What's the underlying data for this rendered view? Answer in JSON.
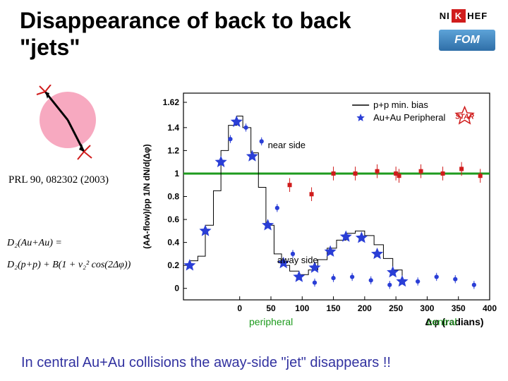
{
  "title": "Disappearance of back to back \"jets\"",
  "logos": {
    "nikhef_ni": "NI",
    "nikhef_k": "K",
    "nikhef_hef": "HEF",
    "fom": "FOM"
  },
  "citation": "PRL 90, 082302 (2003)",
  "d2_labels": {
    "top": "D₂(Au+Au) =",
    "bottom": "D₂(p+p) + B(1 + v₂² cos(2Δφ))"
  },
  "annotations": {
    "near_side": "near side",
    "away_side": "away side",
    "peripheral": "peripheral",
    "central": "central",
    "star": "STAR"
  },
  "legend": {
    "pp": "p+p min. bias",
    "auau_peripheral": "Au+Au Peripheral"
  },
  "chart": {
    "type": "scatter-step",
    "x_axis": {
      "lim": [
        -90,
        400
      ],
      "ticks": [
        0,
        50,
        100,
        150,
        200,
        250,
        300,
        350,
        400
      ]
    },
    "y_axis": {
      "label": "(AA-flow)/pp   1/N dN/d(Δφ)",
      "lim": [
        -0.1,
        1.7
      ],
      "ticks": [
        0,
        0.2,
        0.4,
        0.6,
        0.8,
        1,
        1.2,
        1.4,
        1.62
      ],
      "title_x": "Δφ (radians)"
    },
    "background_color": "#ffffff",
    "frame_color": "#000000",
    "green_baseline_y": 1.0,
    "green_color": "#1e9b1e",
    "series": {
      "pp_hist": {
        "color": "#000000",
        "linewidth": 1,
        "points": [
          [
            -80,
            0.24
          ],
          [
            -67,
            0.28
          ],
          [
            -55,
            0.55
          ],
          [
            -42,
            0.85
          ],
          [
            -30,
            1.2
          ],
          [
            -18,
            1.42
          ],
          [
            -5,
            1.5
          ],
          [
            5,
            1.4
          ],
          [
            18,
            1.18
          ],
          [
            30,
            0.88
          ],
          [
            42,
            0.55
          ],
          [
            55,
            0.3
          ],
          [
            67,
            0.2
          ],
          [
            80,
            0.15
          ],
          [
            95,
            0.12
          ],
          [
            110,
            0.16
          ],
          [
            125,
            0.25
          ],
          [
            140,
            0.35
          ],
          [
            155,
            0.42
          ],
          [
            170,
            0.48
          ],
          [
            185,
            0.5
          ],
          [
            200,
            0.46
          ],
          [
            215,
            0.38
          ],
          [
            230,
            0.26
          ],
          [
            245,
            0.16
          ],
          [
            260,
            0.1
          ]
        ]
      },
      "auau_peripheral": {
        "marker": "star",
        "color": "#2a3ed6",
        "size": 10,
        "points": [
          [
            -80,
            0.2
          ],
          [
            -55,
            0.5
          ],
          [
            -30,
            1.1
          ],
          [
            -5,
            1.45
          ],
          [
            20,
            1.15
          ],
          [
            45,
            0.55
          ],
          [
            70,
            0.22
          ],
          [
            95,
            0.1
          ],
          [
            120,
            0.18
          ],
          [
            145,
            0.32
          ],
          [
            170,
            0.45
          ],
          [
            195,
            0.44
          ],
          [
            220,
            0.3
          ],
          [
            245,
            0.14
          ],
          [
            260,
            0.06
          ]
        ]
      },
      "auau_central_blue": {
        "marker": "circle",
        "color": "#2a3ed6",
        "size": 5,
        "err": 0.035,
        "points": [
          [
            -15,
            1.3
          ],
          [
            10,
            1.4
          ],
          [
            35,
            1.28
          ],
          [
            60,
            0.7
          ],
          [
            85,
            0.3
          ],
          [
            120,
            0.05
          ],
          [
            150,
            0.09
          ],
          [
            180,
            0.1
          ],
          [
            210,
            0.07
          ],
          [
            240,
            0.03
          ],
          [
            285,
            0.06
          ],
          [
            315,
            0.1
          ],
          [
            345,
            0.08
          ],
          [
            375,
            0.03
          ]
        ]
      },
      "red_squares": {
        "marker": "square",
        "color": "#d01c1c",
        "size": 6,
        "err": 0.06,
        "points": [
          [
            80,
            0.9
          ],
          [
            115,
            0.82
          ],
          [
            150,
            1.0
          ],
          [
            185,
            1.0
          ],
          [
            220,
            1.02
          ],
          [
            250,
            1.0
          ],
          [
            255,
            0.98
          ],
          [
            290,
            1.02
          ],
          [
            325,
            1.0
          ],
          [
            355,
            1.04
          ],
          [
            385,
            0.98
          ]
        ]
      }
    }
  },
  "conclusion": "In central Au+Au collisions the away-side \"jet\" disappears !!",
  "colors": {
    "title_text": "#000000",
    "annotation_green": "#1e9b1e",
    "citation_text": "#000000",
    "conclusion_text": "#3232a0",
    "collision_fill": "#f7a9c0",
    "arrow_color": "#000000"
  }
}
